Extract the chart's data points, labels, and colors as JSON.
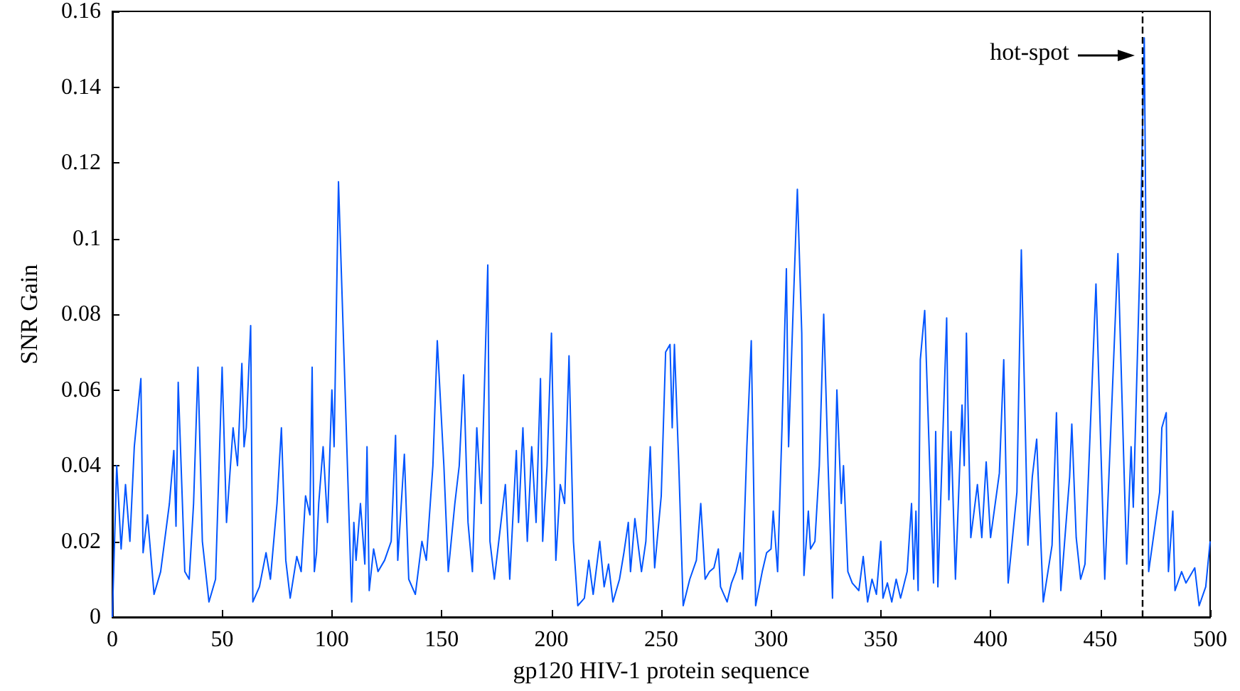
{
  "chart_data": {
    "type": "line",
    "xlabel": "gp120 HIV-1 protein sequence",
    "ylabel": "SNR Gain",
    "xlim": [
      0,
      500
    ],
    "xticks": [
      0,
      50,
      100,
      150,
      200,
      250,
      300,
      350,
      400,
      450,
      500
    ],
    "ylim": [
      0,
      0.16
    ],
    "yticks": [
      0,
      0.02,
      0.04,
      0.06,
      0.08,
      0.1,
      0.12,
      0.14,
      0.16
    ],
    "grid": false,
    "marker": "none",
    "line_style": "solid",
    "ref_lines": [
      {
        "axis": "x",
        "value": 469,
        "color": "#000000",
        "line_style": "dashed"
      }
    ],
    "annotations": [
      "hot-spot"
    ],
    "series": [
      {
        "color": "#0055ff",
        "x": [
          0,
          2,
          4,
          6,
          8,
          10,
          13,
          14,
          16,
          19,
          22,
          26,
          28,
          29,
          30,
          33,
          35,
          37,
          39,
          41,
          44,
          47,
          50,
          52,
          55,
          57,
          59,
          60,
          61,
          63,
          64,
          67,
          70,
          72,
          75,
          77,
          79,
          81,
          84,
          86,
          88,
          90,
          91,
          92,
          93,
          94,
          96,
          98,
          100,
          101,
          103,
          106,
          109,
          110,
          111,
          113,
          115,
          116,
          117,
          119,
          121,
          124,
          127,
          129,
          130,
          133,
          135,
          138,
          141,
          143,
          146,
          148,
          151,
          153,
          156,
          158,
          160,
          162,
          164,
          166,
          168,
          171,
          172,
          174,
          177,
          179,
          181,
          184,
          185,
          187,
          189,
          191,
          193,
          195,
          196,
          198,
          200,
          202,
          204,
          206,
          208,
          210,
          212,
          215,
          217,
          219,
          222,
          224,
          226,
          228,
          231,
          233,
          235,
          236,
          238,
          241,
          243,
          245,
          247,
          250,
          252,
          254,
          255,
          256,
          258,
          260,
          263,
          266,
          268,
          270,
          272,
          274,
          276,
          277,
          280,
          282,
          284,
          286,
          287,
          289,
          291,
          293,
          296,
          298,
          300,
          301,
          303,
          305,
          307,
          308,
          310,
          312,
          314,
          315,
          317,
          318,
          320,
          322,
          324,
          326,
          328,
          330,
          332,
          333,
          335,
          337,
          340,
          342,
          344,
          346,
          348,
          350,
          351,
          353,
          355,
          357,
          359,
          362,
          364,
          365,
          366,
          367,
          368,
          370,
          374,
          375,
          376,
          380,
          381,
          382,
          384,
          387,
          388,
          389,
          391,
          394,
          396,
          398,
          400,
          404,
          406,
          408,
          412,
          414,
          417,
          419,
          421,
          424,
          428,
          430,
          432,
          436,
          437,
          439,
          441,
          443,
          448,
          452,
          458,
          462,
          464,
          465,
          468,
          470,
          472,
          477,
          478,
          480,
          481,
          483,
          484,
          487,
          489,
          493,
          495,
          498,
          500
        ],
        "values": [
          0,
          0.04,
          0.018,
          0.035,
          0.02,
          0.045,
          0.063,
          0.017,
          0.027,
          0.006,
          0.012,
          0.03,
          0.044,
          0.024,
          0.062,
          0.012,
          0.01,
          0.03,
          0.066,
          0.02,
          0.004,
          0.01,
          0.066,
          0.025,
          0.05,
          0.04,
          0.067,
          0.045,
          0.05,
          0.077,
          0.004,
          0.008,
          0.017,
          0.01,
          0.03,
          0.05,
          0.015,
          0.005,
          0.016,
          0.012,
          0.032,
          0.027,
          0.066,
          0.012,
          0.017,
          0.03,
          0.045,
          0.025,
          0.06,
          0.045,
          0.115,
          0.06,
          0.004,
          0.025,
          0.015,
          0.03,
          0.014,
          0.045,
          0.007,
          0.018,
          0.012,
          0.015,
          0.02,
          0.048,
          0.015,
          0.043,
          0.01,
          0.006,
          0.02,
          0.015,
          0.04,
          0.073,
          0.04,
          0.012,
          0.03,
          0.04,
          0.064,
          0.025,
          0.012,
          0.05,
          0.03,
          0.093,
          0.02,
          0.01,
          0.025,
          0.035,
          0.01,
          0.044,
          0.025,
          0.05,
          0.02,
          0.045,
          0.025,
          0.063,
          0.02,
          0.04,
          0.075,
          0.015,
          0.035,
          0.03,
          0.069,
          0.02,
          0.003,
          0.005,
          0.015,
          0.006,
          0.02,
          0.008,
          0.014,
          0.004,
          0.01,
          0.017,
          0.025,
          0.012,
          0.026,
          0.012,
          0.02,
          0.045,
          0.013,
          0.032,
          0.07,
          0.072,
          0.05,
          0.072,
          0.04,
          0.003,
          0.01,
          0.015,
          0.03,
          0.01,
          0.012,
          0.013,
          0.018,
          0.008,
          0.004,
          0.009,
          0.012,
          0.017,
          0.01,
          0.045,
          0.073,
          0.003,
          0.012,
          0.017,
          0.018,
          0.028,
          0.012,
          0.05,
          0.092,
          0.045,
          0.08,
          0.113,
          0.075,
          0.011,
          0.028,
          0.018,
          0.02,
          0.04,
          0.08,
          0.04,
          0.005,
          0.06,
          0.03,
          0.04,
          0.012,
          0.009,
          0.007,
          0.016,
          0.004,
          0.01,
          0.006,
          0.02,
          0.005,
          0.009,
          0.004,
          0.01,
          0.005,
          0.012,
          0.03,
          0.01,
          0.028,
          0.007,
          0.068,
          0.081,
          0.009,
          0.049,
          0.008,
          0.079,
          0.031,
          0.049,
          0.01,
          0.056,
          0.04,
          0.075,
          0.021,
          0.035,
          0.021,
          0.041,
          0.021,
          0.038,
          0.068,
          0.009,
          0.033,
          0.097,
          0.019,
          0.037,
          0.047,
          0.004,
          0.019,
          0.054,
          0.007,
          0.037,
          0.051,
          0.021,
          0.01,
          0.014,
          0.088,
          0.01,
          0.096,
          0.014,
          0.045,
          0.029,
          0.093,
          0.153,
          0.012,
          0.033,
          0.05,
          0.054,
          0.012,
          0.028,
          0.007,
          0.012,
          0.009,
          0.013,
          0.003,
          0.008,
          0.02
        ]
      }
    ]
  }
}
